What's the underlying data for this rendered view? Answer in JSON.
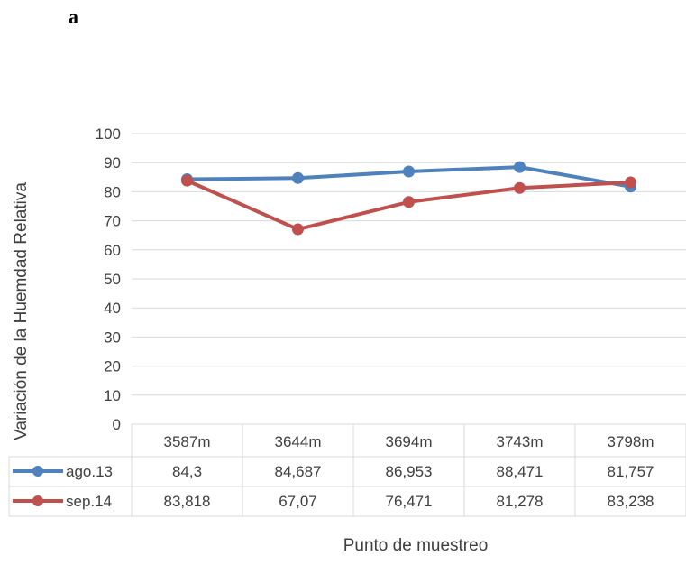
{
  "figure": {
    "panel_letter": "a"
  },
  "chart_data": {
    "type": "line",
    "title": "",
    "xlabel": "Punto de muestreo",
    "ylabel": "Variación de la Huemdad Relativa",
    "categories": [
      "3587m",
      "3644m",
      "3694m",
      "3743m",
      "3798m"
    ],
    "ylim": [
      0,
      100
    ],
    "yticks": [
      0,
      10,
      20,
      30,
      40,
      50,
      60,
      70,
      80,
      90,
      100
    ],
    "grid": true,
    "legend": "data-table",
    "series": [
      {
        "name": "ago.13",
        "color": "#4f81bd",
        "values": [
          84.3,
          84.687,
          86.953,
          88.471,
          81.757
        ],
        "labels": [
          "84,3",
          "84,687",
          "86,953",
          "88,471",
          "81,757"
        ]
      },
      {
        "name": "sep.14",
        "color": "#c0504d",
        "values": [
          83.818,
          67.07,
          76.471,
          81.278,
          83.238
        ],
        "labels": [
          "83,818",
          "67,07",
          "76,471",
          "81,278",
          "83,238"
        ]
      }
    ]
  }
}
